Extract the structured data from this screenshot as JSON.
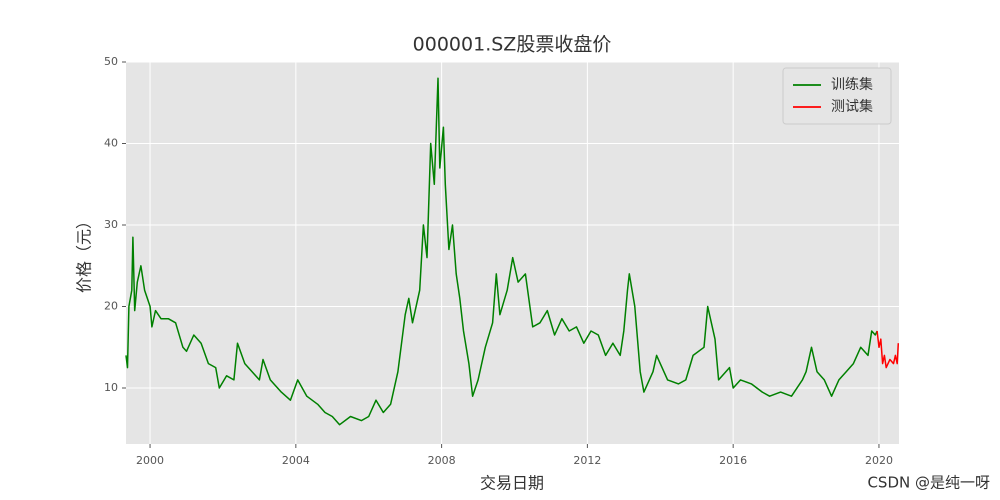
{
  "chart_data": {
    "type": "line",
    "title": "000001.SZ股票收盘价",
    "x_label": "交易日期",
    "y_label": "价格（元）",
    "xlim": [
      1999.34,
      2020.55
    ],
    "xticks": [
      2000,
      2004,
      2008,
      2012,
      2016,
      2020
    ],
    "ylim": [
      3.13,
      50
    ],
    "yticks": [
      10,
      20,
      30,
      40,
      50
    ],
    "grid": true,
    "legend": "upper right",
    "watermark": "CSDN @是纯一呀",
    "series": [
      {
        "name": "训练集",
        "color": "#008000",
        "x": [
          1999.34,
          1999.38,
          1999.42,
          1999.5,
          1999.53,
          1999.58,
          1999.65,
          1999.75,
          1999.85,
          2000.0,
          2000.05,
          2000.15,
          2000.3,
          2000.5,
          2000.7,
          2000.9,
          2001.0,
          2001.2,
          2001.4,
          2001.6,
          2001.8,
          2001.9,
          2002.1,
          2002.3,
          2002.4,
          2002.6,
          2002.8,
          2003.0,
          2003.1,
          2003.3,
          2003.6,
          2003.85,
          2004.05,
          2004.3,
          2004.6,
          2004.8,
          2005.0,
          2005.2,
          2005.5,
          2005.8,
          2006.0,
          2006.2,
          2006.4,
          2006.6,
          2006.8,
          2007.0,
          2007.1,
          2007.2,
          2007.4,
          2007.5,
          2007.6,
          2007.7,
          2007.8,
          2007.9,
          2007.95,
          2008.05,
          2008.1,
          2008.2,
          2008.3,
          2008.4,
          2008.5,
          2008.6,
          2008.75,
          2008.85,
          2009.0,
          2009.2,
          2009.4,
          2009.5,
          2009.6,
          2009.8,
          2009.95,
          2010.1,
          2010.3,
          2010.5,
          2010.7,
          2010.9,
          2011.1,
          2011.3,
          2011.5,
          2011.7,
          2011.9,
          2012.1,
          2012.3,
          2012.5,
          2012.7,
          2012.9,
          2013.0,
          2013.1,
          2013.15,
          2013.3,
          2013.45,
          2013.55,
          2013.8,
          2013.9,
          2014.2,
          2014.5,
          2014.7,
          2014.9,
          2015.2,
          2015.3,
          2015.5,
          2015.6,
          2015.9,
          2016.0,
          2016.2,
          2016.5,
          2016.8,
          2017.0,
          2017.3,
          2017.6,
          2017.9,
          2018.0,
          2018.15,
          2018.3,
          2018.5,
          2018.7,
          2018.9,
          2019.1,
          2019.3,
          2019.5,
          2019.7,
          2019.8,
          2019.9,
          2019.95
        ],
        "values": [
          14,
          12.5,
          20,
          22,
          28.5,
          19.5,
          23,
          25,
          22,
          20,
          17.5,
          19.5,
          18.5,
          18.5,
          18,
          15,
          14.5,
          16.5,
          15.5,
          13,
          12.5,
          10,
          11.5,
          11,
          15.5,
          13,
          12,
          11,
          13.5,
          11,
          9.5,
          8.5,
          11,
          9,
          8,
          7,
          6.5,
          5.5,
          6.5,
          6,
          6.5,
          8.5,
          7,
          8,
          12,
          19,
          21,
          18,
          22,
          30,
          26,
          40,
          35,
          48,
          37,
          42,
          35,
          27,
          30,
          24,
          21,
          17,
          13,
          9,
          11,
          15,
          18,
          24,
          19,
          22,
          26,
          23,
          24,
          17.5,
          18,
          19.5,
          16.5,
          18.5,
          17,
          17.5,
          15.5,
          17,
          16.5,
          14,
          15.5,
          14,
          17,
          22,
          24,
          20,
          12,
          9.5,
          12,
          14,
          11,
          10.5,
          11,
          14,
          15,
          20,
          16,
          11,
          12.5,
          10,
          11,
          10.5,
          9.5,
          9,
          9.5,
          9,
          11,
          12,
          15,
          12,
          11,
          9,
          11,
          12,
          13,
          15,
          14,
          17,
          16.5,
          17
        ]
      },
      {
        "name": "测试集",
        "color": "#ff0000",
        "x": [
          2019.95,
          2020.0,
          2020.05,
          2020.1,
          2020.15,
          2020.2,
          2020.3,
          2020.4,
          2020.45,
          2020.5,
          2020.53
        ],
        "values": [
          17,
          15,
          16,
          13,
          14,
          12.5,
          13.5,
          13,
          14,
          13,
          15.5
        ]
      }
    ]
  }
}
